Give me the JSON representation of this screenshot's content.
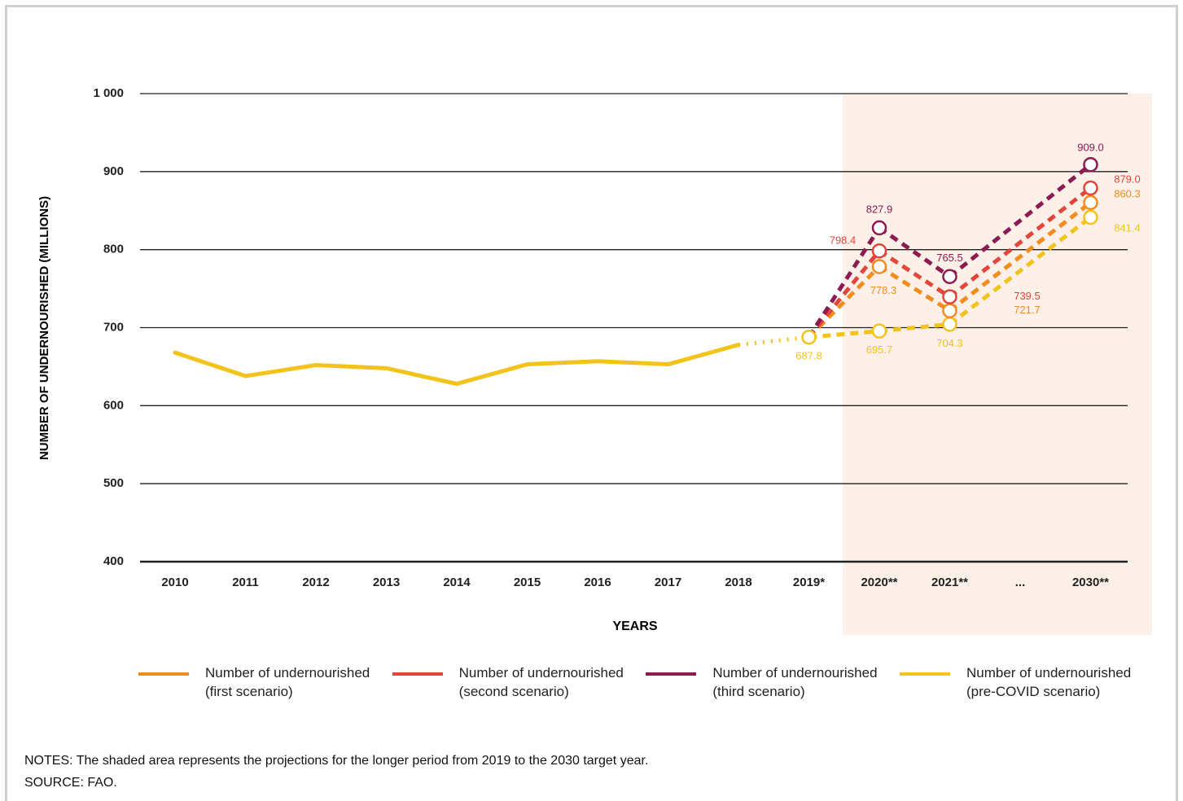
{
  "chart_data": {
    "type": "line",
    "x_label": "YEARS",
    "y_label": "NUMBER OF UNDERNOURISHED (MILLIONS)",
    "categories": [
      "2010",
      "2011",
      "2012",
      "2013",
      "2014",
      "2015",
      "2016",
      "2017",
      "2018",
      "2019*",
      "2020**",
      "2021**",
      "2030**"
    ],
    "axis_gap_label": "...",
    "ylim": [
      400,
      1000
    ],
    "yticks": [
      400,
      500,
      600,
      700,
      800,
      900,
      {
        "value": 1000,
        "label": "1 000"
      }
    ],
    "grid": true,
    "series": [
      {
        "name": "Number of undernourished (first scenario)",
        "color": "#f28c1f",
        "values": [
          null,
          null,
          null,
          null,
          null,
          null,
          null,
          null,
          null,
          687.8,
          778.3,
          721.7,
          860.3
        ],
        "value_labels": [
          null,
          null,
          null,
          null,
          null,
          null,
          null,
          null,
          null,
          null,
          "778.3",
          "721.7",
          "860.3"
        ]
      },
      {
        "name": "Number of undernourished (second scenario)",
        "color": "#e2453b",
        "values": [
          null,
          null,
          null,
          null,
          null,
          null,
          null,
          null,
          null,
          687.8,
          798.4,
          739.5,
          879.0
        ],
        "value_labels": [
          null,
          null,
          null,
          null,
          null,
          null,
          null,
          null,
          null,
          null,
          "798.4",
          "739.5",
          "879.0"
        ]
      },
      {
        "name": "Number of undernourished (third scenario)",
        "color": "#8c1b52",
        "values": [
          null,
          null,
          null,
          null,
          null,
          null,
          null,
          null,
          null,
          687.8,
          827.9,
          765.5,
          909.0
        ],
        "value_labels": [
          null,
          null,
          null,
          null,
          null,
          null,
          null,
          null,
          null,
          null,
          "827.9",
          "765.5",
          "909.0"
        ]
      },
      {
        "name": "Number of undernourished (pre-COVID scenario)",
        "color": "#f2c31b",
        "values": [
          668,
          638,
          652,
          648,
          628,
          653,
          657,
          653,
          678,
          687.8,
          695.7,
          704.3,
          841.4
        ],
        "value_labels": [
          null,
          null,
          null,
          null,
          null,
          null,
          null,
          null,
          null,
          "687.8",
          "695.7",
          "704.3",
          "841.4"
        ]
      }
    ]
  },
  "notes": "NOTES: The shaded area represents the projections for the longer period from 2019 to the 2030 target year.",
  "source": "SOURCE: FAO."
}
